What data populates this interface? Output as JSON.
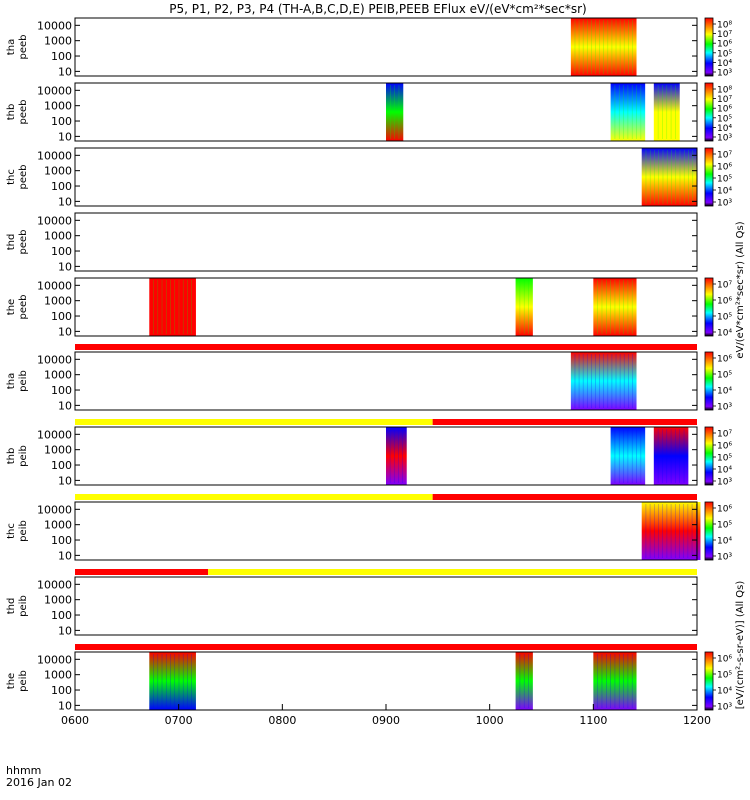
{
  "chart_data": {
    "type": "heatmap",
    "title": "P5, P1, P2, P3, P4 (TH-A,B,C,D,E) PEIB,PEEB EFlux eV/(eV*cm²*sec*sr)",
    "xlabel": "hhmm",
    "date_label": "2016 Jan 02",
    "xlim": [
      "0600",
      "1200"
    ],
    "x_ticks": [
      "0600",
      "0700",
      "0800",
      "0900",
      "1000",
      "1100",
      "1200"
    ],
    "y_scale": "log",
    "y_ticks": [
      "10",
      "100",
      "1000",
      "10000"
    ],
    "colors": {
      "red": "#ff0000",
      "yellow": "#ffff00",
      "green": "#00ff00",
      "cyan": "#00ffff",
      "blue": "#0000ff",
      "purple": "#7f00ff",
      "black": "#000000"
    },
    "colorbar_units_electron": "eV/(eV*cm²*sec*sr) (All Qs)",
    "colorbar_units_ion": "[eV/(cm²-s-sr-eV)] (All Qs)",
    "panels": [
      {
        "name": "tha peeb",
        "line1": "tha",
        "line2": "peeb",
        "cb_labels": [
          "10⁸",
          "10⁷",
          "10⁶",
          "10⁵",
          "10⁴",
          "10³"
        ],
        "blocks": [
          {
            "start": "1047",
            "end": "1085",
            "low": "red",
            "mid": "yellow",
            "high": "red",
            "style": "electron"
          }
        ]
      },
      {
        "name": "thb peeb",
        "line1": "thb",
        "line2": "peeb",
        "cb_labels": [
          "10⁸",
          "10⁷",
          "10⁶",
          "10⁵",
          "10⁴",
          "10³"
        ],
        "blocks": [
          {
            "start": "0900",
            "end": "0910",
            "low": "red",
            "mid": "green",
            "high": "blue",
            "style": "electron"
          },
          {
            "start": "1070",
            "end": "1090",
            "low": "yellow",
            "mid": "cyan",
            "high": "blue",
            "style": "electron"
          },
          {
            "start": "1135",
            "end": "1150",
            "low": "yellow",
            "mid": "yellow",
            "high": "blue",
            "style": "electron"
          }
        ]
      },
      {
        "name": "thc peeb",
        "line1": "thc",
        "line2": "peeb",
        "cb_labels": [
          "10⁷",
          "10⁶",
          "10⁵",
          "10⁴",
          "10³"
        ],
        "blocks": [
          {
            "start": "1128",
            "end": "1160",
            "low": "red",
            "mid": "yellow",
            "high": "blue",
            "style": "electron"
          }
        ]
      },
      {
        "name": "thd peeb",
        "line1": "thd",
        "line2": "peeb",
        "cb_labels": [],
        "blocks": []
      },
      {
        "name": "the peeb",
        "line1": "the",
        "line2": "peeb",
        "cb_labels": [
          "10⁷",
          "10⁶",
          "10⁵",
          "10⁴"
        ],
        "blocks": [
          {
            "start": "0643",
            "end": "0670",
            "low": "red",
            "mid": "red",
            "high": "red",
            "style": "electron"
          },
          {
            "start": "0975",
            "end": "1025",
            "low": "red",
            "mid": "yellow",
            "high": "green",
            "style": "electron"
          },
          {
            "start": "1060",
            "end": "1085",
            "low": "red",
            "mid": "yellow",
            "high": "red",
            "style": "electron"
          }
        ]
      },
      {
        "name": "tha peib",
        "line1": "tha",
        "line2": "peib",
        "cb_labels": [
          "10⁶",
          "10⁵",
          "10⁴",
          "10³"
        ],
        "bar": [
          {
            "start": "0600",
            "end": "1200",
            "color": "red"
          }
        ],
        "blocks": [
          {
            "start": "1047",
            "end": "1085",
            "low": "purple",
            "mid": "cyan",
            "high": "red",
            "style": "ion"
          }
        ]
      },
      {
        "name": "thb peib",
        "line1": "thb",
        "line2": "peib",
        "cb_labels": [
          "10⁷",
          "10⁶",
          "10⁵",
          "10⁴",
          "10³"
        ],
        "bar": [
          {
            "start": "0600",
            "end": "0887",
            "color": "yellow"
          },
          {
            "start": "0887",
            "end": "1200",
            "color": "red"
          }
        ],
        "blocks": [
          {
            "start": "0900",
            "end": "0912",
            "low": "purple",
            "mid": "red",
            "high": "blue",
            "style": "ion"
          },
          {
            "start": "1070",
            "end": "1090",
            "low": "purple",
            "mid": "cyan",
            "high": "blue",
            "style": "ion"
          },
          {
            "start": "1135",
            "end": "1155",
            "low": "purple",
            "mid": "blue",
            "high": "red",
            "style": "ion"
          }
        ]
      },
      {
        "name": "thc peib",
        "line1": "thc",
        "line2": "peib",
        "cb_labels": [
          "10⁶",
          "10⁵",
          "10⁴",
          "10³"
        ],
        "bar": [
          {
            "start": "0600",
            "end": "0887",
            "color": "yellow"
          },
          {
            "start": "0887",
            "end": "1200",
            "color": "red"
          }
        ],
        "blocks": [
          {
            "start": "1128",
            "end": "1162",
            "low": "purple",
            "mid": "red",
            "high": "yellow",
            "style": "ion"
          }
        ]
      },
      {
        "name": "thd peib",
        "line1": "thd",
        "line2": "peib",
        "cb_labels": [],
        "bar": [
          {
            "start": "0600",
            "end": "0717",
            "color": "red"
          },
          {
            "start": "0717",
            "end": "1200",
            "color": "yellow"
          }
        ],
        "blocks": []
      },
      {
        "name": "the peib",
        "line1": "the",
        "line2": "peib",
        "cb_labels": [
          "10⁶",
          "10⁵",
          "10⁴",
          "10³"
        ],
        "bar": [
          {
            "start": "0600",
            "end": "1200",
            "color": "red"
          }
        ],
        "blocks": [
          {
            "start": "0643",
            "end": "0670",
            "low": "blue",
            "mid": "green",
            "high": "red",
            "style": "ion"
          },
          {
            "start": "0975",
            "end": "1025",
            "low": "purple",
            "mid": "green",
            "high": "red",
            "style": "ion"
          },
          {
            "start": "1060",
            "end": "1085",
            "low": "purple",
            "mid": "green",
            "high": "red",
            "style": "ion"
          }
        ]
      }
    ]
  }
}
